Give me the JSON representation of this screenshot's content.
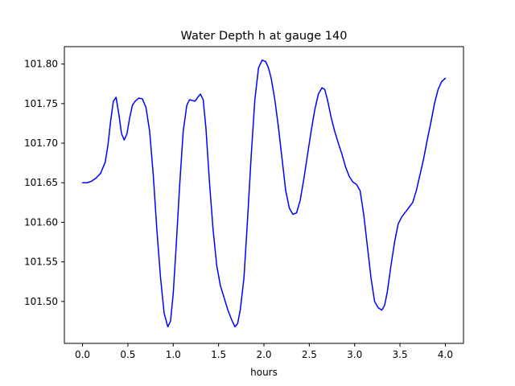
{
  "chart_data": {
    "type": "line",
    "title": "Water Depth h at gauge 140",
    "xlabel": "hours",
    "ylabel": "",
    "xlim": [
      -0.2,
      4.2
    ],
    "ylim": [
      101.447,
      101.822
    ],
    "xticks": [
      0.0,
      0.5,
      1.0,
      1.5,
      2.0,
      2.5,
      3.0,
      3.5,
      4.0
    ],
    "xtick_labels": [
      "0.0",
      "0.5",
      "1.0",
      "1.5",
      "2.0",
      "2.5",
      "3.0",
      "3.5",
      "4.0"
    ],
    "yticks": [
      101.5,
      101.55,
      101.6,
      101.65,
      101.7,
      101.75,
      101.8
    ],
    "ytick_labels": [
      "101.50",
      "101.55",
      "101.60",
      "101.65",
      "101.70",
      "101.75",
      "101.80"
    ],
    "grid": false,
    "colors": {
      "line": "#0000ff"
    },
    "series": [
      {
        "x": [
          0.0,
          0.05,
          0.1,
          0.15,
          0.2,
          0.25,
          0.28,
          0.31,
          0.34,
          0.37,
          0.4,
          0.43,
          0.46,
          0.49,
          0.52,
          0.55,
          0.58,
          0.62,
          0.66,
          0.7,
          0.74,
          0.78,
          0.82,
          0.86,
          0.9,
          0.94,
          0.97,
          1.0,
          1.03,
          1.07,
          1.11,
          1.15,
          1.18,
          1.21,
          1.24,
          1.27,
          1.3,
          1.33,
          1.36,
          1.4,
          1.44,
          1.48,
          1.52,
          1.56,
          1.6,
          1.64,
          1.68,
          1.71,
          1.74,
          1.78,
          1.82,
          1.86,
          1.9,
          1.94,
          1.98,
          2.02,
          2.05,
          2.08,
          2.12,
          2.16,
          2.2,
          2.24,
          2.28,
          2.32,
          2.36,
          2.4,
          2.44,
          2.48,
          2.52,
          2.56,
          2.6,
          2.64,
          2.67,
          2.7,
          2.74,
          2.78,
          2.82,
          2.86,
          2.9,
          2.94,
          2.98,
          3.02,
          3.06,
          3.1,
          3.14,
          3.18,
          3.22,
          3.26,
          3.3,
          3.33,
          3.36,
          3.4,
          3.44,
          3.48,
          3.52,
          3.56,
          3.6,
          3.64,
          3.68,
          3.72,
          3.76,
          3.8,
          3.84,
          3.88,
          3.92,
          3.96,
          4.0
        ],
        "y": [
          101.65,
          101.65,
          101.652,
          101.656,
          101.662,
          101.676,
          101.697,
          101.728,
          101.753,
          101.758,
          101.737,
          101.712,
          101.704,
          101.712,
          101.732,
          101.748,
          101.753,
          101.757,
          101.756,
          101.745,
          101.715,
          101.66,
          101.59,
          101.53,
          101.485,
          101.468,
          101.475,
          101.51,
          101.565,
          101.645,
          101.715,
          101.748,
          101.755,
          101.754,
          101.753,
          101.758,
          101.762,
          101.755,
          101.72,
          101.65,
          101.59,
          101.545,
          101.52,
          101.505,
          101.49,
          101.478,
          101.468,
          101.472,
          101.49,
          101.53,
          101.605,
          101.685,
          101.755,
          101.795,
          101.805,
          101.803,
          101.795,
          101.782,
          101.755,
          101.72,
          101.68,
          101.64,
          101.618,
          101.61,
          101.612,
          101.628,
          101.655,
          101.685,
          101.715,
          101.742,
          101.762,
          101.77,
          101.768,
          101.755,
          101.733,
          101.715,
          101.7,
          101.686,
          101.67,
          101.658,
          101.651,
          101.648,
          101.64,
          101.61,
          101.57,
          101.53,
          101.5,
          101.492,
          101.489,
          101.495,
          101.512,
          101.545,
          101.575,
          101.598,
          101.607,
          101.613,
          101.619,
          101.625,
          101.64,
          101.66,
          101.68,
          101.704,
          101.726,
          101.75,
          101.768,
          101.778,
          101.782
        ]
      }
    ]
  }
}
